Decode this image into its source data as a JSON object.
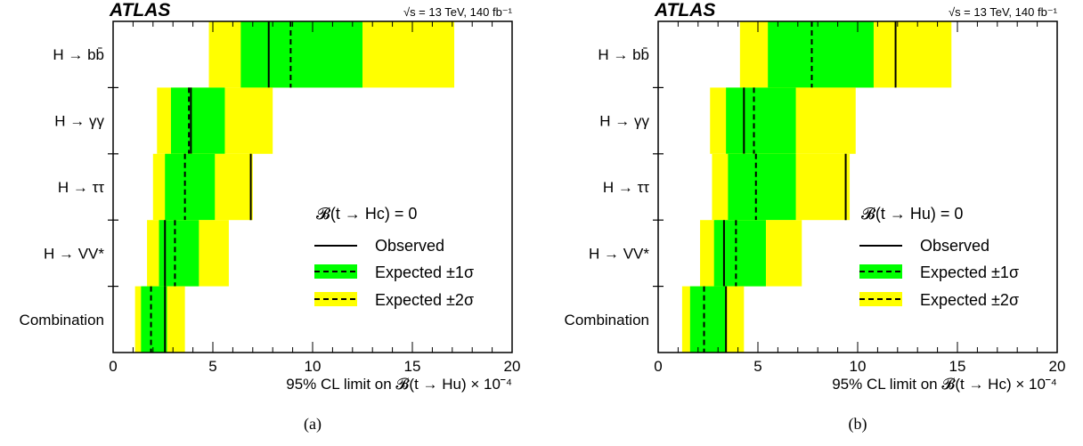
{
  "chart_data": [
    {
      "type": "bar",
      "panel_label": "(a)",
      "experiment": "ATLAS",
      "energy_label": "√s = 13 TeV, 140 fb⁻¹",
      "xlabel": "95% CL limit on 𝓑(t → Hu) × 10⁻⁴",
      "xlim": [
        0,
        20
      ],
      "xticks": [
        0,
        5,
        10,
        15,
        20
      ],
      "legend_title": "𝓑(t → Hc) = 0",
      "legend_position": "right",
      "legend": [
        "Observed",
        "Expected ±1σ",
        "Expected ±2σ"
      ],
      "categories": [
        "H → bb̄",
        "H → γγ",
        "H → ττ",
        "H → VV*",
        "Combination"
      ],
      "observed": [
        7.8,
        3.9,
        6.9,
        2.6,
        2.6
      ],
      "expected": [
        8.9,
        3.8,
        3.6,
        3.1,
        1.9
      ],
      "band_1sigma": [
        [
          6.4,
          12.5
        ],
        [
          2.9,
          5.6
        ],
        [
          2.6,
          5.1
        ],
        [
          2.3,
          4.3
        ],
        [
          1.4,
          2.7
        ]
      ],
      "band_2sigma": [
        [
          4.8,
          17.1
        ],
        [
          2.2,
          8.0
        ],
        [
          2.0,
          7.0
        ],
        [
          1.7,
          5.8
        ],
        [
          1.1,
          3.6
        ]
      ]
    },
    {
      "type": "bar",
      "panel_label": "(b)",
      "experiment": "ATLAS",
      "energy_label": "√s = 13 TeV, 140 fb⁻¹",
      "xlabel": "95% CL limit on 𝓑(t → Hc) × 10⁻⁴",
      "xlim": [
        0,
        20
      ],
      "xticks": [
        0,
        5,
        10,
        15,
        20
      ],
      "legend_title": "𝓑(t → Hu) = 0",
      "legend_position": "right",
      "legend": [
        "Observed",
        "Expected ±1σ",
        "Expected ±2σ"
      ],
      "categories": [
        "H → bb̄",
        "H → γγ",
        "H → ττ",
        "H → VV*",
        "Combination"
      ],
      "observed": [
        11.9,
        4.3,
        9.4,
        3.3,
        3.4
      ],
      "expected": [
        7.7,
        4.8,
        4.9,
        3.9,
        2.3
      ],
      "band_1sigma": [
        [
          5.5,
          10.8
        ],
        [
          3.4,
          6.9
        ],
        [
          3.5,
          6.9
        ],
        [
          2.8,
          5.4
        ],
        [
          1.6,
          3.4
        ]
      ],
      "band_2sigma": [
        [
          4.1,
          14.7
        ],
        [
          2.6,
          9.9
        ],
        [
          2.7,
          9.6
        ],
        [
          2.1,
          7.2
        ],
        [
          1.2,
          4.3
        ]
      ]
    }
  ]
}
